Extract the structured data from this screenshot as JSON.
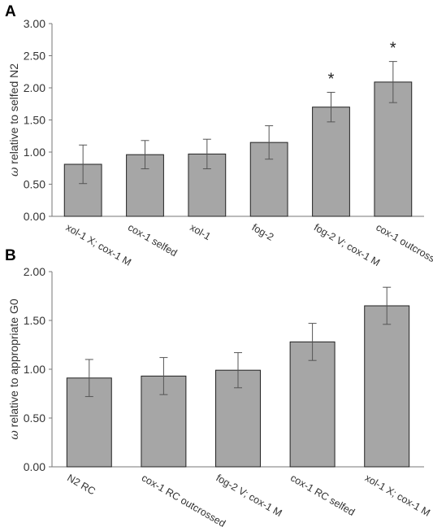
{
  "chart_data": [
    {
      "panel": "A",
      "type": "bar",
      "ylabel_symbol": "ω",
      "ylabel_text": " relative to selfed N2",
      "categories": [
        "xol-1 X; cox-1 M",
        "cox-1 selfed",
        "xol-1",
        "fog-2",
        "fog-2 V; cox-1 M",
        "cox-1 outcrossed"
      ],
      "values": [
        0.81,
        0.96,
        0.97,
        1.15,
        1.7,
        2.09
      ],
      "errors": [
        0.3,
        0.22,
        0.23,
        0.26,
        0.23,
        0.32
      ],
      "annotations": [
        "",
        "",
        "",
        "",
        "*",
        "*"
      ],
      "ylim": [
        0,
        3.0
      ],
      "yticks": [
        "0.00",
        "0.50",
        "1.00",
        "1.50",
        "2.00",
        "2.50",
        "3.00"
      ],
      "bar_color": "#a6a6a6",
      "grid": false
    },
    {
      "panel": "B",
      "type": "bar",
      "ylabel_symbol": "ω",
      "ylabel_text": " relative to appropriate G0",
      "categories": [
        "N2 RC",
        "cox-1 RC outcrossed",
        "fog-2 V; cox-1 M",
        "cox-1 RC selfed",
        "xol-1 X; cox-1 M"
      ],
      "values": [
        0.91,
        0.93,
        0.99,
        1.28,
        1.65
      ],
      "errors": [
        0.19,
        0.19,
        0.18,
        0.19,
        0.19
      ],
      "annotations": [
        "",
        "",
        "",
        "",
        ""
      ],
      "ylim": [
        0,
        2.0
      ],
      "yticks": [
        "0.00",
        "0.50",
        "1.00",
        "1.50",
        "2.00"
      ],
      "bar_color": "#a6a6a6",
      "grid": false
    }
  ]
}
